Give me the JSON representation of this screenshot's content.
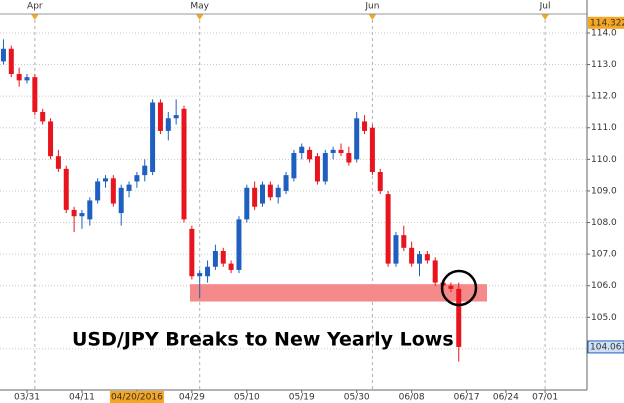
{
  "chart_data": {
    "type": "candlestick",
    "annotation": "USD/JPY Breaks to New Yearly Lows",
    "categories": [
      null,
      null,
      null,
      "03/31",
      null,
      null,
      null,
      null,
      null,
      null,
      "04/11",
      null,
      null,
      null,
      null,
      null,
      null,
      "04/20/2016",
      null,
      null,
      null,
      null,
      null,
      null,
      "04/29",
      null,
      null,
      null,
      null,
      null,
      null,
      "05/10",
      null,
      null,
      null,
      null,
      null,
      null,
      "05/19",
      null,
      null,
      null,
      null,
      null,
      null,
      "05/30",
      null,
      null,
      null,
      null,
      null,
      null,
      "06/08",
      null,
      null,
      null,
      null,
      null,
      null,
      "06/17",
      null,
      null,
      null,
      null,
      "06/24",
      null,
      null,
      null,
      null,
      "07/01"
    ],
    "month_categories": [
      null,
      null,
      null,
      null,
      "Apr",
      null,
      null,
      null,
      null,
      null,
      null,
      null,
      null,
      null,
      null,
      null,
      null,
      null,
      null,
      null,
      null,
      null,
      null,
      null,
      null,
      "May",
      null,
      null,
      null,
      null,
      null,
      null,
      null,
      null,
      null,
      null,
      null,
      null,
      null,
      null,
      null,
      null,
      null,
      null,
      null,
      null,
      null,
      "Jun",
      null,
      null,
      null,
      null,
      null,
      null,
      null,
      null,
      null,
      null,
      null,
      null,
      null,
      null,
      null,
      null,
      null,
      null,
      null,
      null,
      null,
      "Jul"
    ],
    "highlighted_category": "04/20/2016",
    "open": [
      113.1,
      113.5,
      112.7,
      112.5,
      112.6,
      111.5,
      111.2,
      110.1,
      109.7,
      108.4,
      108.2,
      108.1,
      108.7,
      109.3,
      109.4,
      108.3,
      109.0,
      109.3,
      109.5,
      109.6,
      111.8,
      110.9,
      111.3,
      111.6,
      107.8,
      106.3,
      106.3,
      106.6,
      107.1,
      106.7,
      106.5,
      108.1,
      109.1,
      108.6,
      109.2,
      108.8,
      109.0,
      109.4,
      110.2,
      110.3,
      110.1,
      109.3,
      110.2,
      110.3,
      110.2,
      110.0,
      111.2,
      111.0,
      109.6,
      108.9,
      106.7,
      107.6,
      107.2,
      106.7,
      107.0,
      106.8,
      106.1,
      106.0,
      105.9,
      null,
      null,
      null,
      null,
      null,
      null,
      null,
      null,
      null,
      null,
      null
    ],
    "high": [
      113.8,
      113.6,
      112.9,
      112.7,
      112.7,
      111.6,
      111.3,
      110.3,
      109.8,
      108.5,
      108.4,
      108.8,
      109.4,
      109.5,
      109.5,
      109.2,
      109.3,
      109.6,
      110.0,
      111.9,
      111.9,
      111.5,
      111.9,
      111.7,
      107.9,
      106.5,
      106.8,
      107.3,
      107.2,
      106.8,
      108.2,
      109.2,
      109.3,
      109.3,
      109.3,
      109.2,
      109.6,
      110.3,
      110.5,
      110.4,
      110.2,
      110.3,
      110.4,
      110.5,
      110.4,
      111.5,
      111.4,
      111.1,
      109.7,
      109.0,
      107.7,
      107.9,
      107.4,
      107.1,
      107.1,
      106.9,
      106.2,
      106.1,
      106.1,
      null,
      null,
      null,
      null,
      null,
      null,
      null,
      null,
      null,
      null,
      null
    ],
    "low": [
      113.0,
      112.6,
      112.3,
      112.4,
      111.4,
      111.1,
      110.0,
      109.6,
      108.3,
      107.7,
      107.8,
      107.9,
      108.6,
      109.1,
      108.5,
      107.9,
      108.8,
      109.1,
      109.3,
      109.5,
      110.8,
      110.6,
      111.1,
      108.0,
      106.2,
      105.6,
      106.1,
      106.5,
      106.6,
      106.4,
      106.4,
      108.0,
      108.4,
      108.5,
      108.7,
      108.6,
      108.9,
      109.3,
      110.0,
      109.9,
      109.2,
      109.2,
      110.0,
      110.1,
      109.8,
      109.9,
      110.8,
      109.5,
      108.9,
      106.6,
      106.6,
      107.1,
      106.6,
      106.3,
      106.7,
      106.0,
      105.8,
      105.8,
      103.6,
      null,
      null,
      null,
      null,
      null,
      null,
      null,
      null,
      null,
      null,
      null
    ],
    "close": [
      113.5,
      112.7,
      112.5,
      112.6,
      111.5,
      111.2,
      110.1,
      109.7,
      108.4,
      108.2,
      108.3,
      108.7,
      109.3,
      109.4,
      108.6,
      109.1,
      109.2,
      109.5,
      109.8,
      111.8,
      110.9,
      111.3,
      111.4,
      108.1,
      106.3,
      106.4,
      106.6,
      107.1,
      106.7,
      106.5,
      108.1,
      109.1,
      108.5,
      109.2,
      108.8,
      109.1,
      109.5,
      110.2,
      110.4,
      110.0,
      109.3,
      110.2,
      110.3,
      110.2,
      109.9,
      111.3,
      110.9,
      109.6,
      109.0,
      106.7,
      107.6,
      107.2,
      106.7,
      107.0,
      106.8,
      106.1,
      106.0,
      105.9,
      104.063,
      null,
      null,
      null,
      null,
      null,
      null,
      null,
      null,
      null,
      null,
      null
    ],
    "up_color": "#1f5fbf",
    "down_color": "#e8141e",
    "ylim": [
      102.7,
      114.6
    ],
    "yticks": [
      {
        "value": 104,
        "label": "104.0"
      },
      {
        "value": 105,
        "label": "105.0"
      },
      {
        "value": 106,
        "label": "106.0"
      },
      {
        "value": 107,
        "label": "107.0"
      },
      {
        "value": 108,
        "label": "108.0"
      },
      {
        "value": 109,
        "label": "109.0"
      },
      {
        "value": 110,
        "label": "110.0"
      },
      {
        "value": 111,
        "label": "111.0"
      },
      {
        "value": 112,
        "label": "112.0"
      },
      {
        "value": 113,
        "label": "113.0"
      },
      {
        "value": 114,
        "label": "114.0"
      }
    ],
    "price_markers": [
      {
        "value": 114.322,
        "color": "#f5a623"
      },
      {
        "value": 104.063,
        "color": "#cfe0f5"
      }
    ],
    "zone": {
      "from": 105.5,
      "to": 106.05,
      "color": "#f58a8a"
    },
    "grid": true
  }
}
